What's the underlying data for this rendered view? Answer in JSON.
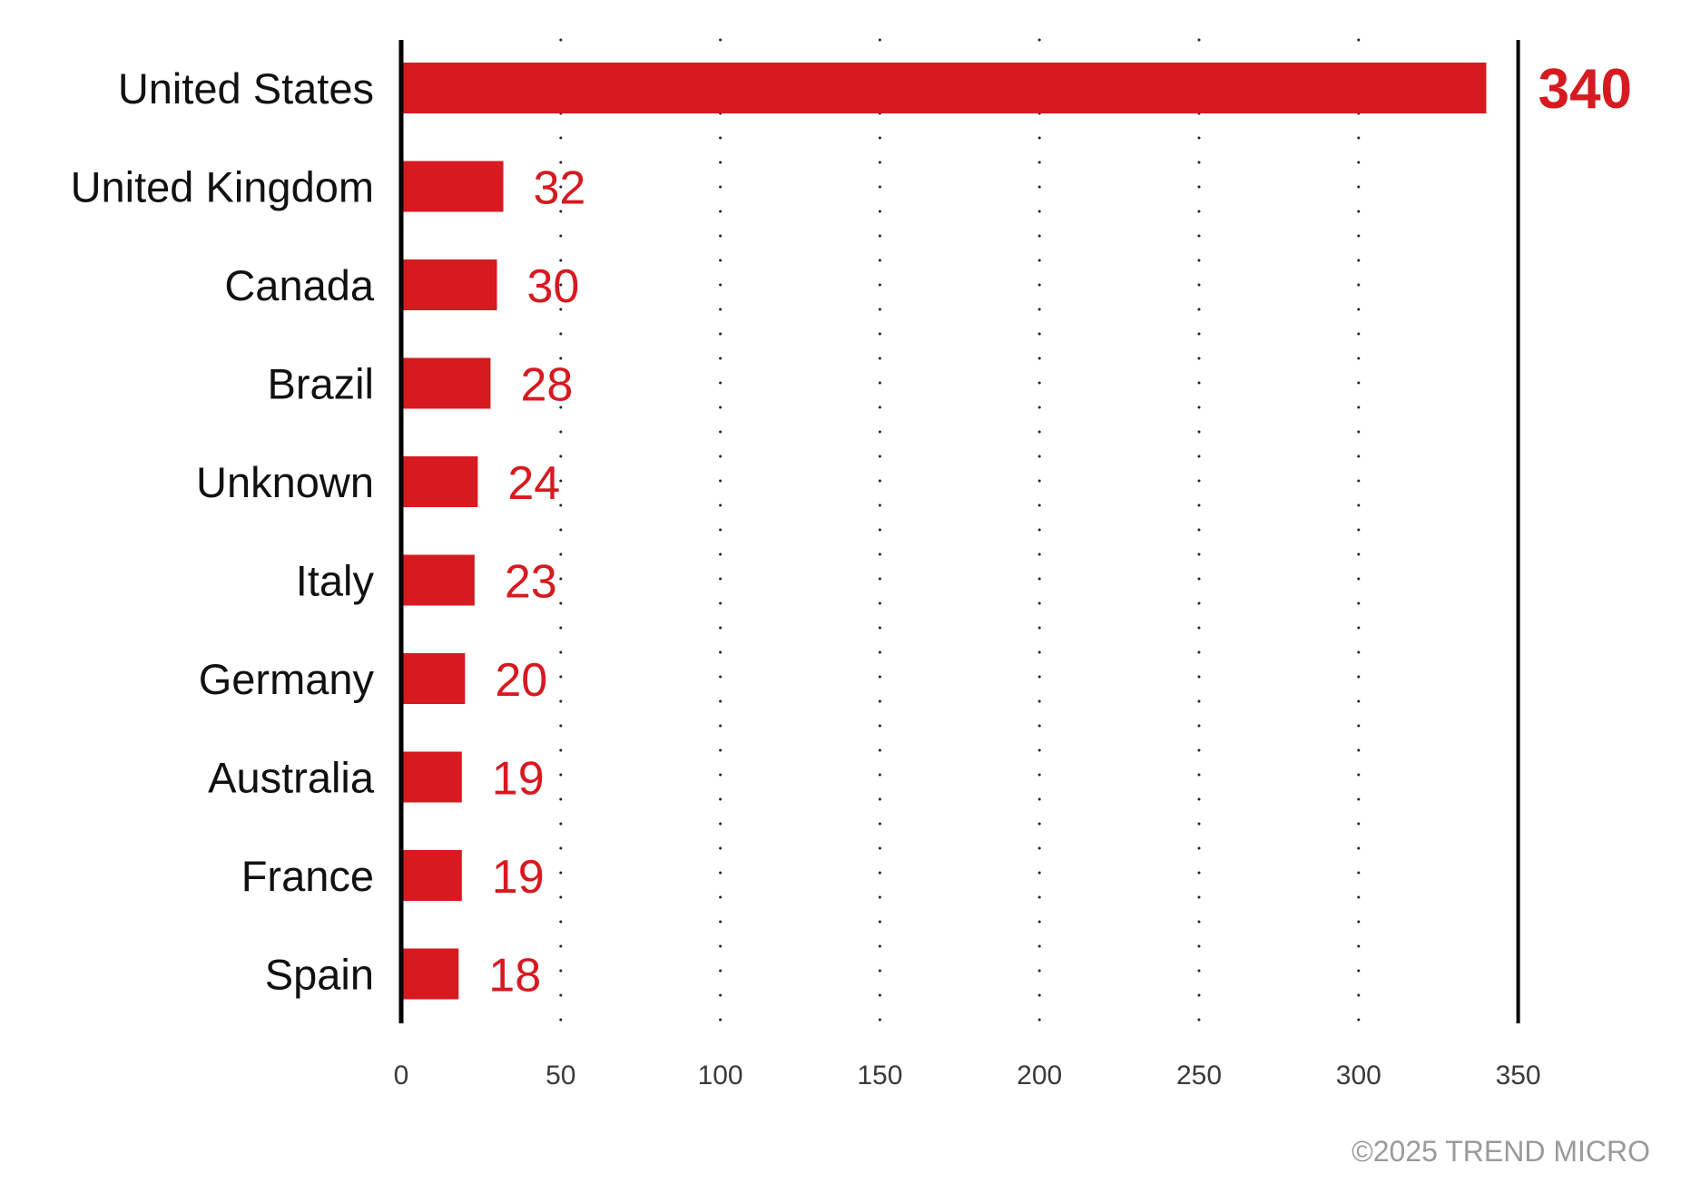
{
  "chart_data": {
    "type": "bar",
    "orientation": "horizontal",
    "categories": [
      "United States",
      "United Kingdom",
      "Canada",
      "Brazil",
      "Unknown",
      "Italy",
      "Germany",
      "Australia",
      "France",
      "Spain"
    ],
    "values": [
      340,
      32,
      30,
      28,
      24,
      23,
      20,
      19,
      19,
      18
    ],
    "data_labels": [
      "340",
      "32",
      "30",
      "28",
      "24",
      "23",
      "20",
      "19",
      "19",
      "18"
    ],
    "xlim": [
      0,
      350
    ],
    "x_ticks": [
      0,
      50,
      100,
      150,
      200,
      250,
      300,
      350
    ],
    "x_tick_labels": [
      "0",
      "50",
      "100",
      "150",
      "200",
      "250",
      "300",
      "350"
    ],
    "grid": "dotted vertical",
    "title": "",
    "xlabel": "",
    "ylabel": "",
    "bar_color": "#d71920",
    "label_color": "#d71920"
  },
  "footer": {
    "copyright": "©2025 TREND MICRO"
  }
}
